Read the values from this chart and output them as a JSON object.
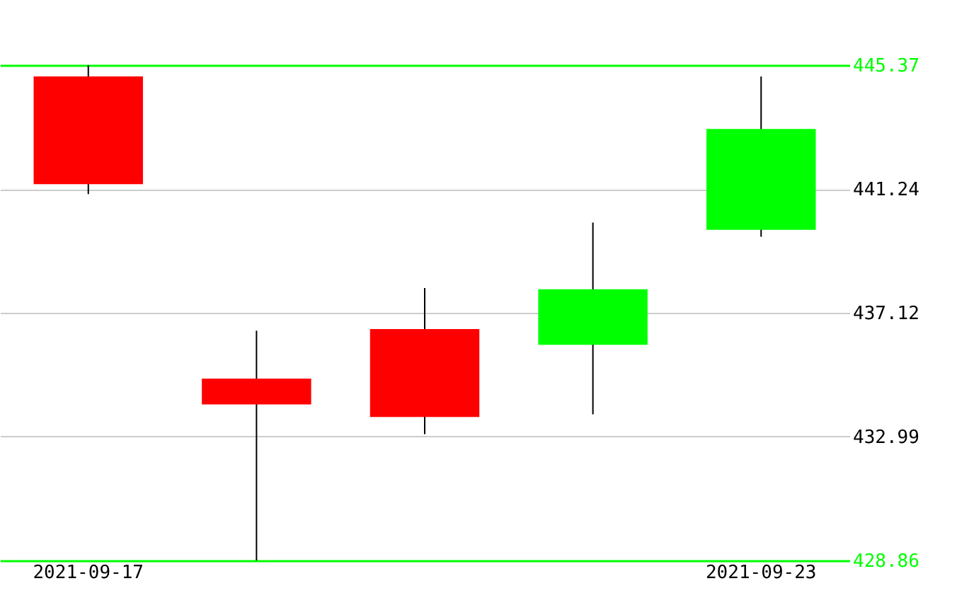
{
  "chart_data": {
    "type": "candlestick",
    "categories": [
      "2021-09-17",
      null,
      null,
      null,
      "2021-09-23"
    ],
    "ohlc": [
      [
        444.99,
        445.37,
        441.07,
        441.4
      ],
      [
        434.92,
        436.52,
        428.86,
        434.06
      ],
      [
        436.57,
        437.94,
        433.07,
        433.64
      ],
      [
        436.05,
        440.12,
        433.73,
        437.9
      ],
      [
        439.88,
        444.99,
        439.65,
        443.24
      ]
    ],
    "ylim": [
      428.86,
      445.37
    ],
    "yticks": [
      428.86,
      432.99,
      437.12,
      441.24,
      445.37
    ],
    "grid": "y",
    "colors": [
      "#ff0000",
      "#ff0000",
      "#ff0000",
      "#00ff00",
      "#00ff00"
    ]
  }
}
